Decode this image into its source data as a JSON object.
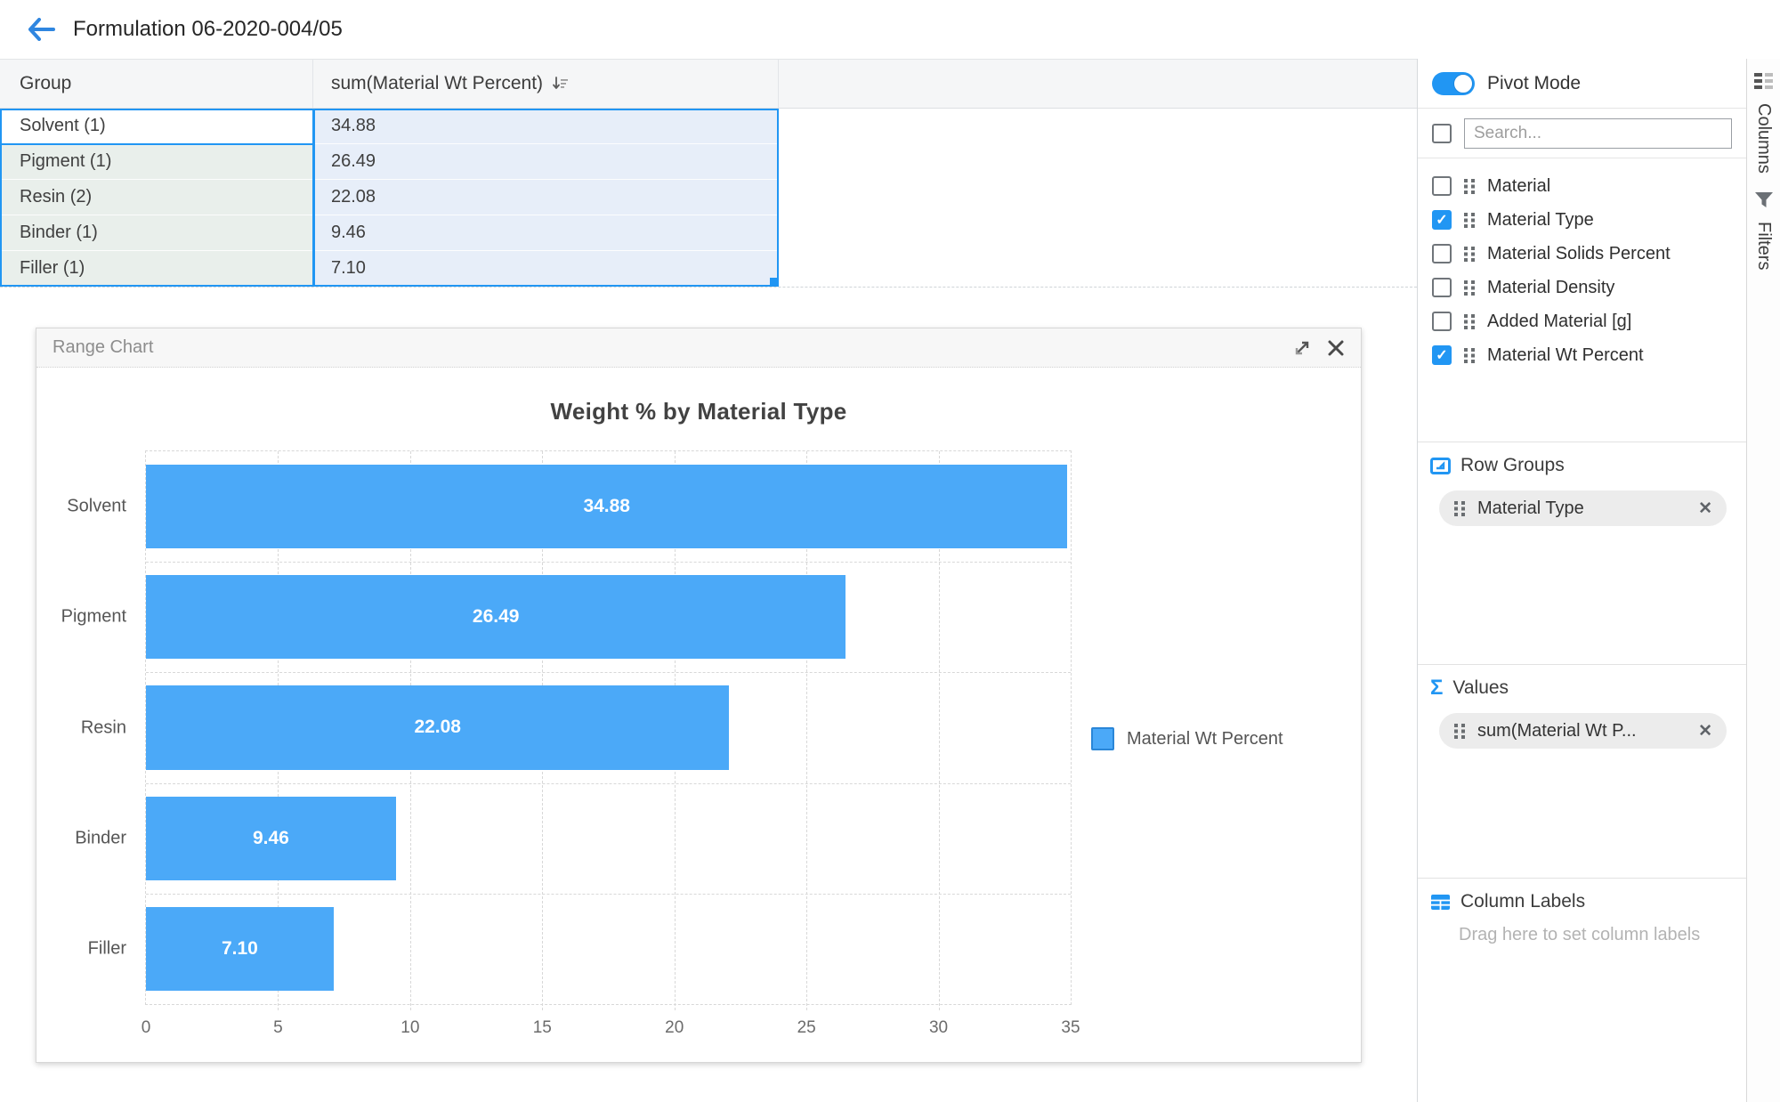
{
  "header": {
    "title": "Formulation 06-2020-004/05"
  },
  "grid": {
    "columns": {
      "group": "Group",
      "value": "sum(Material Wt Percent)"
    },
    "rows": [
      {
        "group": "Solvent (1)",
        "value": "34.88"
      },
      {
        "group": "Pigment (1)",
        "value": "26.49"
      },
      {
        "group": "Resin (2)",
        "value": "22.08"
      },
      {
        "group": "Binder (1)",
        "value": "9.46"
      },
      {
        "group": "Filler (1)",
        "value": "7.10"
      }
    ]
  },
  "chart_panel": {
    "title": "Range Chart"
  },
  "chart_data": {
    "type": "bar",
    "orientation": "horizontal",
    "title": "Weight % by Material Type",
    "categories": [
      "Solvent",
      "Pigment",
      "Resin",
      "Binder",
      "Filler"
    ],
    "values": [
      34.88,
      26.49,
      22.08,
      9.46,
      7.1
    ],
    "xlabel": "",
    "ylabel": "",
    "xlim": [
      0,
      35
    ],
    "xticks": [
      0,
      5,
      10,
      15,
      20,
      25,
      30,
      35
    ],
    "grid": true,
    "legend": [
      "Material Wt Percent"
    ],
    "legend_position": "right",
    "bar_color": "#4ba9f8"
  },
  "sidebar": {
    "pivot_mode_label": "Pivot Mode",
    "search_placeholder": "Search...",
    "columns": [
      {
        "label": "Material",
        "checked": false
      },
      {
        "label": "Material Type",
        "checked": true
      },
      {
        "label": "Material Solids Percent",
        "checked": false
      },
      {
        "label": "Material Density",
        "checked": false
      },
      {
        "label": "Added Material [g]",
        "checked": false
      },
      {
        "label": "Material Wt Percent",
        "checked": true
      }
    ],
    "row_groups": {
      "title": "Row Groups",
      "items": [
        "Material Type"
      ]
    },
    "values": {
      "title": "Values",
      "items": [
        "sum(Material Wt P..."
      ]
    },
    "column_labels": {
      "title": "Column Labels",
      "placeholder": "Drag here to set column labels"
    }
  },
  "side_tabs": {
    "columns": "Columns",
    "filters": "Filters"
  },
  "colors": {
    "accent": "#2196f3",
    "bar": "#4ba9f8"
  }
}
